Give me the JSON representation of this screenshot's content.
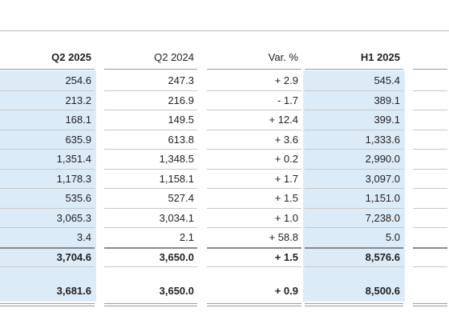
{
  "table": {
    "header": [
      "Q2 2025",
      "Q2 2024",
      "Var. %",
      "H1 2025"
    ],
    "rows": [
      [
        "254.6",
        "247.3",
        "+ 2.9",
        "545.4"
      ],
      [
        "213.2",
        "216.9",
        "- 1.7",
        "389.1"
      ],
      [
        "168.1",
        "149.5",
        "+ 12.4",
        "399.1"
      ],
      [
        "635.9",
        "613.8",
        "+ 3.6",
        "1,333.6"
      ],
      [
        "1,351.4",
        "1,348.5",
        "+ 0.2",
        "2,990.0"
      ],
      [
        "1,178.3",
        "1,158.1",
        "+ 1.7",
        "3,097.0"
      ],
      [
        "535.6",
        "527.4",
        "+ 1.5",
        "1,151.0"
      ],
      [
        "3,065.3",
        "3,034.1",
        "+ 1.0",
        "7,238.0"
      ],
      [
        "3.4",
        "2.1",
        "+ 58.8",
        "5.0"
      ],
      [
        "3,704.6",
        "3,650.0",
        "+ 1.5",
        "8,576.6"
      ],
      [
        "3,681.6",
        "3,650.0",
        "+ 0.9",
        "8,500.6"
      ]
    ]
  }
}
